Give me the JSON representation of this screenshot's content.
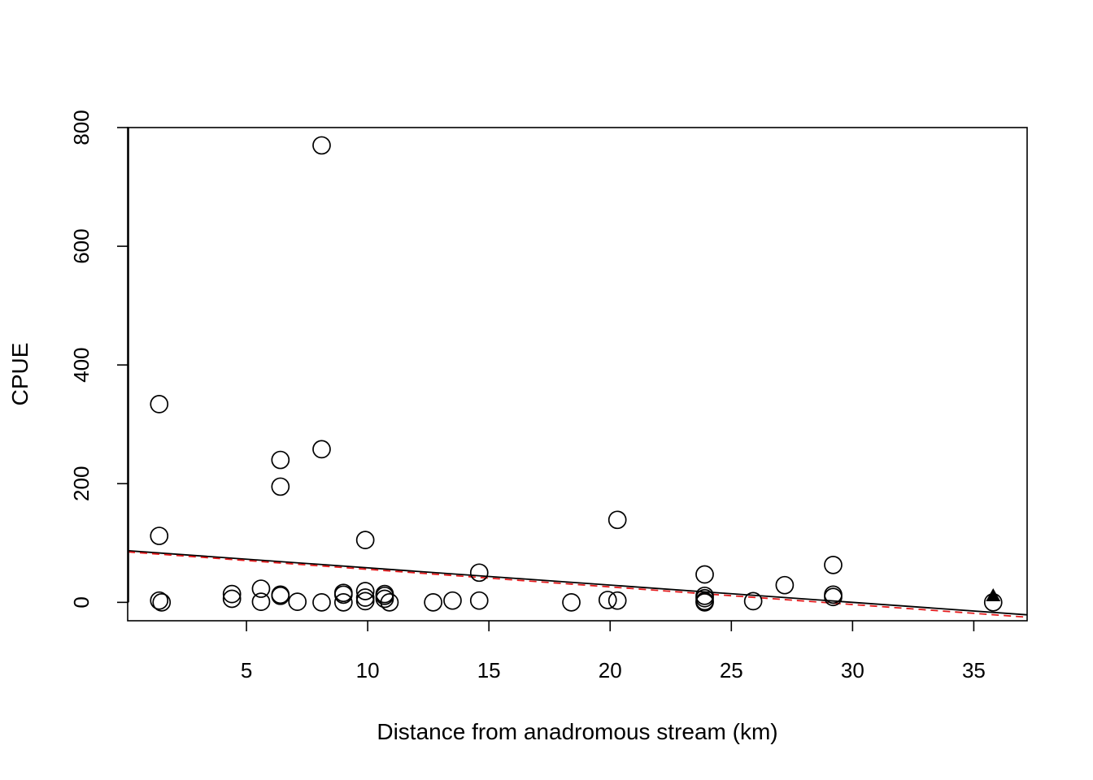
{
  "chart_data": {
    "type": "scatter",
    "title": "",
    "xlabel": "Distance from anadromous stream (km)",
    "ylabel": "CPUE",
    "xlim": [
      0.1,
      37.2
    ],
    "ylim": [
      -31,
      800
    ],
    "x_ticks": [
      5,
      10,
      15,
      20,
      25,
      30,
      35
    ],
    "y_ticks": [
      0,
      200,
      400,
      600,
      800
    ],
    "grid": false,
    "legend": "none",
    "colors": {
      "points": "#000000",
      "fit_line": "#000000",
      "dashed_fit_line": "#e41a1c"
    },
    "points": [
      {
        "x": 1.4,
        "y": 334
      },
      {
        "x": 1.4,
        "y": 112
      },
      {
        "x": 1.4,
        "y": 3
      },
      {
        "x": 1.5,
        "y": 0
      },
      {
        "x": 4.4,
        "y": 14
      },
      {
        "x": 4.4,
        "y": 6
      },
      {
        "x": 5.6,
        "y": 23
      },
      {
        "x": 5.6,
        "y": 1
      },
      {
        "x": 6.4,
        "y": 240
      },
      {
        "x": 6.4,
        "y": 195
      },
      {
        "x": 6.4,
        "y": 13
      },
      {
        "x": 6.4,
        "y": 11
      },
      {
        "x": 7.1,
        "y": 1
      },
      {
        "x": 8.1,
        "y": 770
      },
      {
        "x": 8.1,
        "y": 258
      },
      {
        "x": 8.1,
        "y": 0
      },
      {
        "x": 9.0,
        "y": 16
      },
      {
        "x": 9.0,
        "y": 13
      },
      {
        "x": 9.0,
        "y": 0
      },
      {
        "x": 9.9,
        "y": 105
      },
      {
        "x": 9.9,
        "y": 19
      },
      {
        "x": 9.9,
        "y": 8
      },
      {
        "x": 9.9,
        "y": 2
      },
      {
        "x": 10.7,
        "y": 14
      },
      {
        "x": 10.7,
        "y": 11
      },
      {
        "x": 10.7,
        "y": 6
      },
      {
        "x": 10.9,
        "y": 0
      },
      {
        "x": 12.7,
        "y": 0
      },
      {
        "x": 13.5,
        "y": 3
      },
      {
        "x": 14.6,
        "y": 50
      },
      {
        "x": 14.6,
        "y": 3
      },
      {
        "x": 18.4,
        "y": 0
      },
      {
        "x": 19.9,
        "y": 4
      },
      {
        "x": 20.3,
        "y": 139
      },
      {
        "x": 20.3,
        "y": 3
      },
      {
        "x": 23.9,
        "y": 47
      },
      {
        "x": 23.9,
        "y": 11
      },
      {
        "x": 23.9,
        "y": 7
      },
      {
        "x": 23.9,
        "y": 2
      },
      {
        "x": 23.9,
        "y": 0
      },
      {
        "x": 25.9,
        "y": 2
      },
      {
        "x": 27.2,
        "y": 29
      },
      {
        "x": 29.2,
        "y": 63
      },
      {
        "x": 29.2,
        "y": 13
      },
      {
        "x": 29.2,
        "y": 9
      },
      {
        "x": 35.8,
        "y": 0
      }
    ],
    "highlight_points": [
      {
        "x": 35.8,
        "y": 10,
        "shape": "filled-triangle"
      }
    ],
    "fit_lines": [
      {
        "style": "solid",
        "color": "#000000",
        "x": [
          0.1,
          37.2
        ],
        "y": [
          87,
          -21
        ]
      },
      {
        "style": "dashed",
        "color": "#e41a1c",
        "x": [
          0.1,
          37.2
        ],
        "y": [
          85,
          -25
        ]
      }
    ]
  }
}
